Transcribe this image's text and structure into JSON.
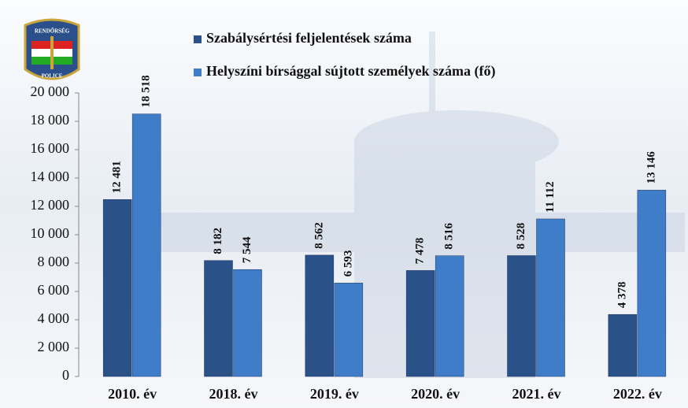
{
  "logo": {
    "top": "RENDŐRSÉG",
    "bottom": "POLICE"
  },
  "chart_data": {
    "type": "bar",
    "categories": [
      "2010. év",
      "2018. év",
      "2019. év",
      "2020. év",
      "2021. év",
      "2022. év"
    ],
    "series": [
      {
        "name": "Szabálysértési feljelentések száma",
        "color": "#2b5189",
        "values": [
          12481,
          8182,
          8562,
          7478,
          8528,
          4378
        ],
        "value_labels": [
          "12 481",
          "8 182",
          "8 562",
          "7 478",
          "8 528",
          "4 378"
        ]
      },
      {
        "name": "Helyszíni bírsággal sújtott személyek száma (fő)",
        "color": "#3f7dc8",
        "values": [
          18518,
          7544,
          6593,
          8516,
          11112,
          13146
        ],
        "value_labels": [
          "18 518",
          "7 544",
          "6 593",
          "8 516",
          "11 112",
          "13 146"
        ]
      }
    ],
    "ylim": [
      0,
      20000
    ],
    "yticks": [
      0,
      {
        "value": 2000,
        "label": "2 000"
      },
      {
        "value": 4000,
        "label": "4 000"
      },
      {
        "value": 6000,
        "label": "6 000"
      },
      {
        "value": 8000,
        "label": "8 000"
      },
      {
        "value": 10000,
        "label": "10 000"
      },
      {
        "value": 12000,
        "label": "12 000"
      },
      {
        "value": 14000,
        "label": "14 000"
      },
      {
        "value": 16000,
        "label": "16 000"
      },
      {
        "value": 18000,
        "label": "18 000"
      },
      {
        "value": 20000,
        "label": "20 000"
      }
    ],
    "legend": "top-left"
  }
}
